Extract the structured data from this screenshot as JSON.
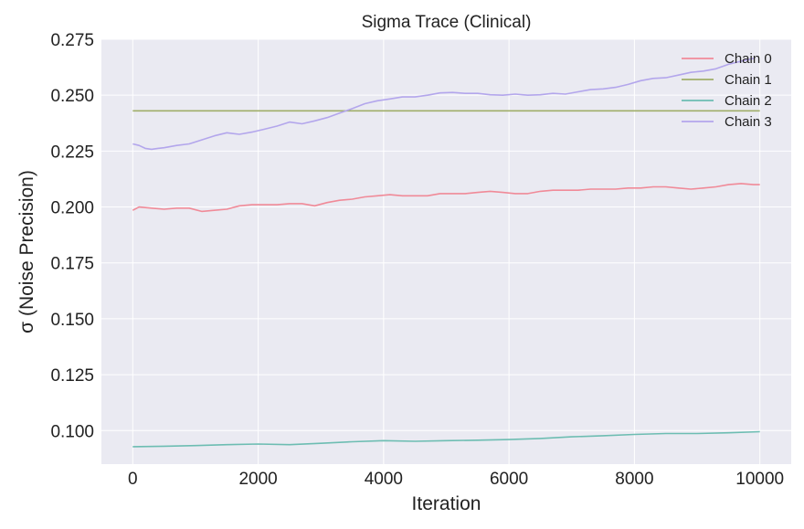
{
  "chart_data": {
    "type": "line",
    "title": "Sigma Trace (Clinical)",
    "xlabel": "Iteration",
    "ylabel": "σ (Noise Precision)",
    "xlim": [
      -500,
      10500
    ],
    "ylim": [
      0.085,
      0.275
    ],
    "xticks": [
      0,
      2000,
      4000,
      6000,
      8000,
      10000
    ],
    "xtick_labels": [
      "0",
      "2000",
      "4000",
      "6000",
      "8000",
      "10000"
    ],
    "yticks": [
      0.1,
      0.125,
      0.15,
      0.175,
      0.2,
      0.225,
      0.25,
      0.275
    ],
    "ytick_labels": [
      "0.100",
      "0.125",
      "0.150",
      "0.175",
      "0.200",
      "0.225",
      "0.250",
      "0.275"
    ],
    "grid": true,
    "legend_position": "top-right",
    "background": "#eaeaf2",
    "series": [
      {
        "name": "Chain 0",
        "color": "#f08a98",
        "x": [
          0,
          100,
          300,
          500,
          700,
          900,
          1100,
          1300,
          1500,
          1700,
          1900,
          2100,
          2300,
          2500,
          2700,
          2900,
          3100,
          3300,
          3500,
          3700,
          3900,
          4100,
          4300,
          4500,
          4700,
          4900,
          5100,
          5300,
          5500,
          5700,
          5900,
          6100,
          6300,
          6500,
          6700,
          6900,
          7100,
          7300,
          7500,
          7700,
          7900,
          8100,
          8300,
          8500,
          8700,
          8900,
          9100,
          9300,
          9500,
          9700,
          9900,
          10000
        ],
        "y": [
          0.1985,
          0.2,
          0.1995,
          0.199,
          0.1995,
          0.1995,
          0.198,
          0.1985,
          0.199,
          0.2005,
          0.201,
          0.201,
          0.201,
          0.2015,
          0.2015,
          0.2005,
          0.202,
          0.203,
          0.2035,
          0.2045,
          0.205,
          0.2055,
          0.205,
          0.205,
          0.205,
          0.206,
          0.206,
          0.206,
          0.2065,
          0.207,
          0.2065,
          0.206,
          0.206,
          0.207,
          0.2075,
          0.2075,
          0.2075,
          0.208,
          0.208,
          0.208,
          0.2085,
          0.2085,
          0.209,
          0.209,
          0.2085,
          0.208,
          0.2085,
          0.209,
          0.21,
          0.2105,
          0.21,
          0.21
        ]
      },
      {
        "name": "Chain 1",
        "color": "#a0ae6a",
        "x": [
          0,
          10000
        ],
        "y": [
          0.243,
          0.243
        ]
      },
      {
        "name": "Chain 2",
        "color": "#6dbdb2",
        "x": [
          0,
          500,
          1000,
          1500,
          2000,
          2500,
          3000,
          3500,
          4000,
          4500,
          5000,
          5500,
          6000,
          6500,
          7000,
          7500,
          8000,
          8500,
          9000,
          9500,
          10000
        ],
        "y": [
          0.0928,
          0.093,
          0.0933,
          0.0937,
          0.094,
          0.0937,
          0.0943,
          0.095,
          0.0955,
          0.0952,
          0.0955,
          0.0957,
          0.096,
          0.0965,
          0.0972,
          0.0977,
          0.0983,
          0.0987,
          0.0987,
          0.099,
          0.0995
        ]
      },
      {
        "name": "Chain 3",
        "color": "#b3a6ec",
        "x": [
          0,
          100,
          200,
          300,
          400,
          500,
          700,
          900,
          1100,
          1300,
          1500,
          1700,
          1900,
          2100,
          2300,
          2500,
          2700,
          2900,
          3100,
          3300,
          3500,
          3700,
          3900,
          4100,
          4300,
          4500,
          4700,
          4900,
          5100,
          5300,
          5500,
          5700,
          5900,
          6100,
          6300,
          6500,
          6700,
          6900,
          7100,
          7300,
          7500,
          7700,
          7900,
          8100,
          8300,
          8500,
          8700,
          8900,
          9100,
          9300,
          9500,
          9700,
          9900
        ],
        "y": [
          0.2282,
          0.2275,
          0.2262,
          0.2258,
          0.2262,
          0.2265,
          0.2275,
          0.2282,
          0.23,
          0.2318,
          0.2332,
          0.2325,
          0.2335,
          0.2348,
          0.2362,
          0.238,
          0.2372,
          0.2385,
          0.24,
          0.242,
          0.244,
          0.2462,
          0.2475,
          0.2483,
          0.2492,
          0.2492,
          0.25,
          0.251,
          0.2512,
          0.2508,
          0.2508,
          0.2502,
          0.25,
          0.2505,
          0.25,
          0.2502,
          0.2508,
          0.2505,
          0.2515,
          0.2525,
          0.2528,
          0.2535,
          0.2548,
          0.2565,
          0.2575,
          0.2578,
          0.259,
          0.2602,
          0.2608,
          0.2618,
          0.2638,
          0.2652,
          0.2665
        ]
      }
    ]
  }
}
